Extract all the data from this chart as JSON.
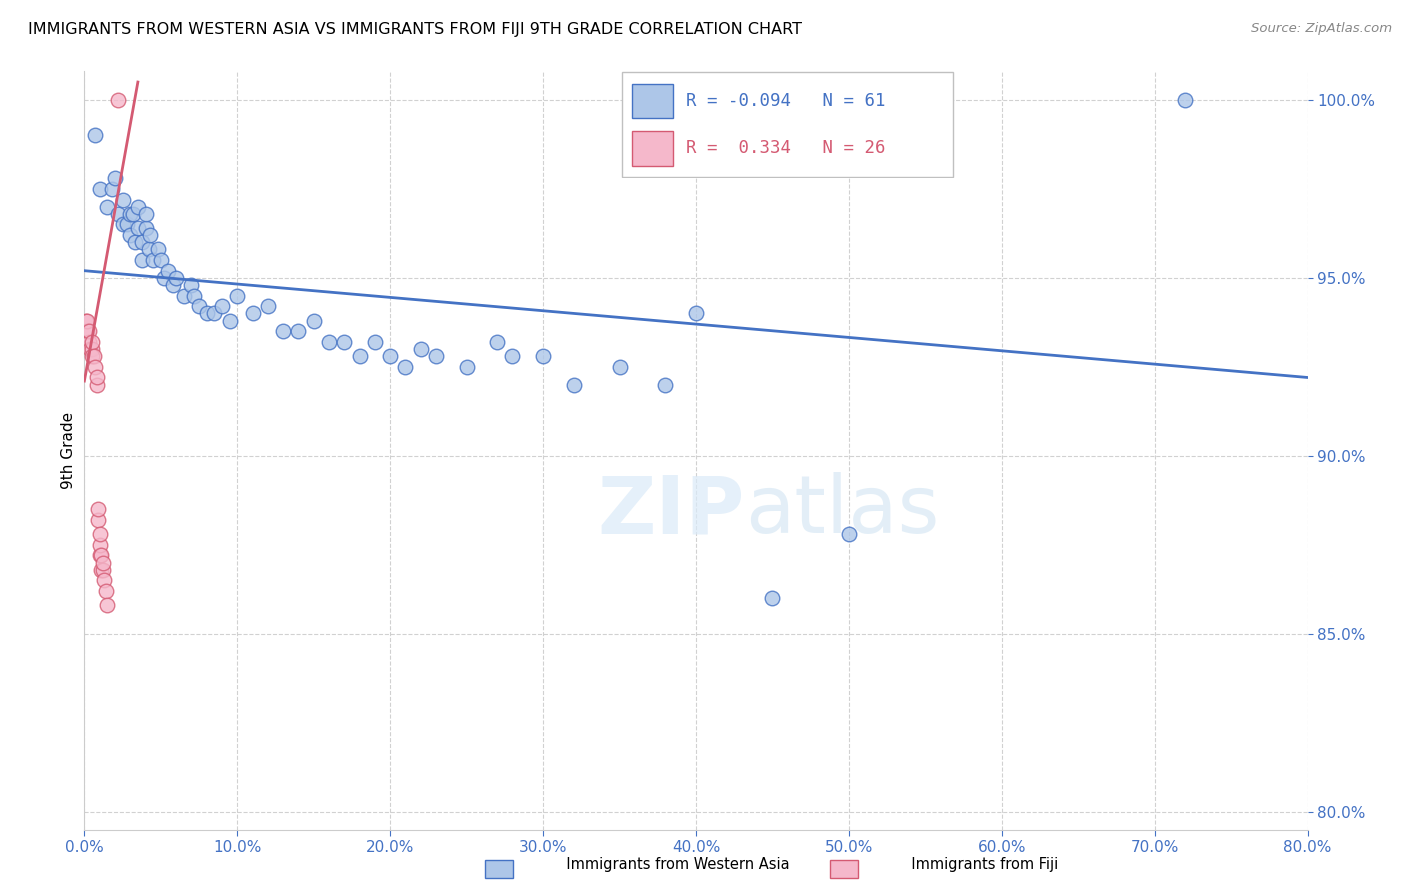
{
  "title": "IMMIGRANTS FROM WESTERN ASIA VS IMMIGRANTS FROM FIJI 9TH GRADE CORRELATION CHART",
  "source": "Source: ZipAtlas.com",
  "ylabel": "9th Grade",
  "legend_label1": "Immigrants from Western Asia",
  "legend_label2": "Immigrants from Fiji",
  "R1": -0.094,
  "N1": 61,
  "R2": 0.334,
  "N2": 26,
  "xlim": [
    0.0,
    0.8
  ],
  "ylim": [
    0.795,
    1.008
  ],
  "xticks": [
    0.0,
    0.1,
    0.2,
    0.3,
    0.4,
    0.5,
    0.6,
    0.7,
    0.8
  ],
  "yticks": [
    0.8,
    0.85,
    0.9,
    0.95,
    1.0
  ],
  "color_blue": "#adc6e8",
  "color_pink": "#f5b8cb",
  "line_blue": "#4472C4",
  "line_pink": "#d45a72",
  "trendline_blue_x0": 0.0,
  "trendline_blue_y0": 0.952,
  "trendline_blue_x1": 0.8,
  "trendline_blue_y1": 0.922,
  "trendline_pink_x0": 0.0,
  "trendline_pink_y0": 0.921,
  "trendline_pink_x1": 0.035,
  "trendline_pink_y1": 1.005,
  "scatter_blue_x": [
    0.007,
    0.01,
    0.015,
    0.018,
    0.02,
    0.022,
    0.025,
    0.025,
    0.028,
    0.03,
    0.03,
    0.032,
    0.033,
    0.035,
    0.035,
    0.038,
    0.038,
    0.04,
    0.04,
    0.042,
    0.043,
    0.045,
    0.048,
    0.05,
    0.052,
    0.055,
    0.058,
    0.06,
    0.065,
    0.07,
    0.072,
    0.075,
    0.08,
    0.085,
    0.09,
    0.095,
    0.1,
    0.11,
    0.12,
    0.13,
    0.14,
    0.15,
    0.16,
    0.17,
    0.18,
    0.19,
    0.2,
    0.21,
    0.22,
    0.23,
    0.25,
    0.27,
    0.28,
    0.3,
    0.32,
    0.35,
    0.38,
    0.4,
    0.45,
    0.5,
    0.72
  ],
  "scatter_blue_y": [
    0.99,
    0.975,
    0.97,
    0.975,
    0.978,
    0.968,
    0.972,
    0.965,
    0.965,
    0.962,
    0.968,
    0.968,
    0.96,
    0.964,
    0.97,
    0.955,
    0.96,
    0.964,
    0.968,
    0.958,
    0.962,
    0.955,
    0.958,
    0.955,
    0.95,
    0.952,
    0.948,
    0.95,
    0.945,
    0.948,
    0.945,
    0.942,
    0.94,
    0.94,
    0.942,
    0.938,
    0.945,
    0.94,
    0.942,
    0.935,
    0.935,
    0.938,
    0.932,
    0.932,
    0.928,
    0.932,
    0.928,
    0.925,
    0.93,
    0.928,
    0.925,
    0.932,
    0.928,
    0.928,
    0.92,
    0.925,
    0.92,
    0.94,
    0.86,
    0.878,
    1.0
  ],
  "scatter_pink_x": [
    0.001,
    0.002,
    0.002,
    0.003,
    0.003,
    0.004,
    0.005,
    0.005,
    0.005,
    0.006,
    0.007,
    0.008,
    0.008,
    0.009,
    0.009,
    0.01,
    0.01,
    0.01,
    0.011,
    0.011,
    0.012,
    0.012,
    0.013,
    0.014,
    0.015,
    0.022
  ],
  "scatter_pink_y": [
    0.938,
    0.935,
    0.938,
    0.932,
    0.935,
    0.93,
    0.93,
    0.928,
    0.932,
    0.928,
    0.925,
    0.92,
    0.922,
    0.882,
    0.885,
    0.872,
    0.875,
    0.878,
    0.868,
    0.872,
    0.868,
    0.87,
    0.865,
    0.862,
    0.858,
    1.0
  ]
}
